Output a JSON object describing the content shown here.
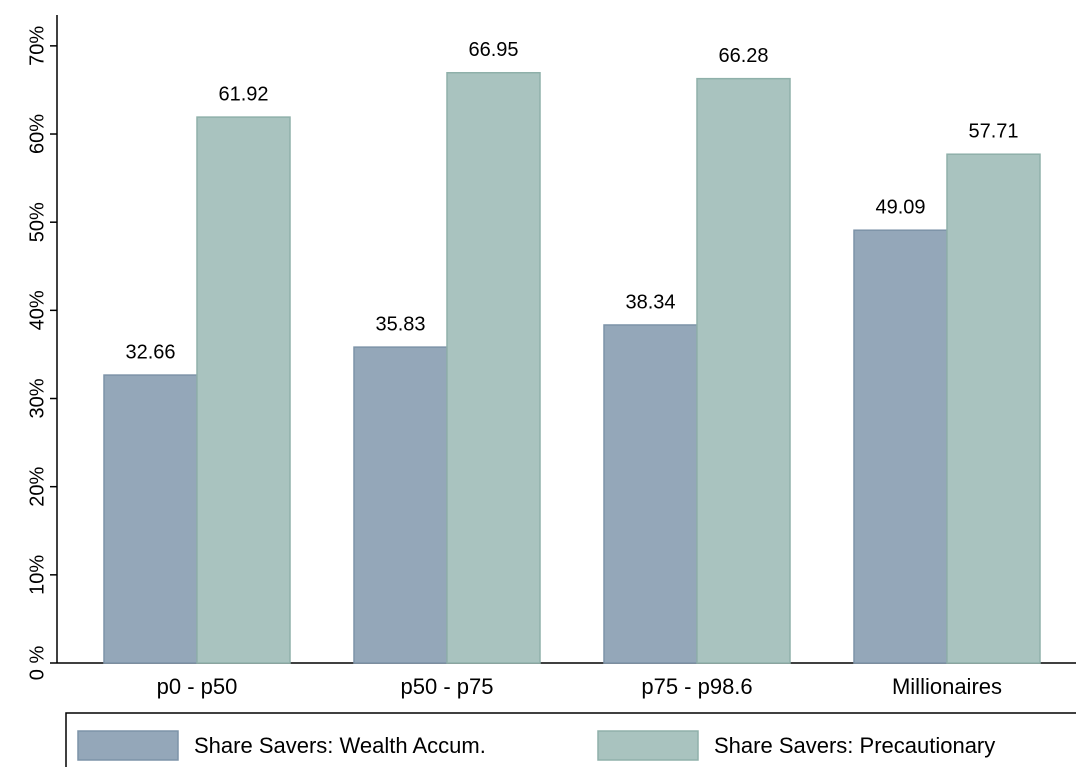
{
  "chart_data": {
    "type": "bar",
    "categories": [
      "p0 - p50",
      "p50 - p75",
      "p75 - p98.6",
      "Millionaires"
    ],
    "series": [
      {
        "name": "Share Savers: Wealth Accum.",
        "color": "#94a7b9",
        "values": [
          32.66,
          35.83,
          38.34,
          49.09
        ]
      },
      {
        "name": "Share Savers: Precautionary",
        "color": "#a9c3bf",
        "values": [
          61.92,
          66.95,
          66.28,
          57.71
        ]
      }
    ],
    "ylim": [
      0,
      73.5
    ],
    "yticks": [
      {
        "value": 0,
        "label": "0 %"
      },
      {
        "value": 10,
        "label": "10%"
      },
      {
        "value": 20,
        "label": "20%"
      },
      {
        "value": 30,
        "label": "30%"
      },
      {
        "value": 40,
        "label": "40%"
      },
      {
        "value": 50,
        "label": "50%"
      },
      {
        "value": 60,
        "label": "60%"
      },
      {
        "value": 70,
        "label": "70%"
      }
    ],
    "grid": false
  }
}
